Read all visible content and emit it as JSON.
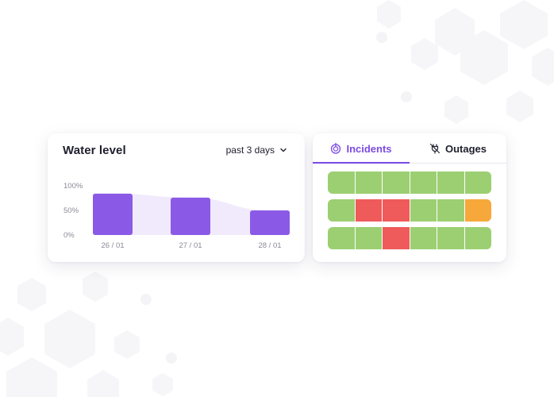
{
  "colors": {
    "accent": "#7b4ae2",
    "bar": "#8a5ae6",
    "area": "#f1eafc",
    "ok": "#9ccf72",
    "incident": "#ef5a5a",
    "warning": "#f7a83b",
    "hex_bg": "#f6f6f8"
  },
  "water_card": {
    "title": "Water level",
    "range_label": "past 3 days",
    "range_icon": "chevron-down-icon"
  },
  "chart_data": {
    "type": "bar",
    "categories": [
      "26 / 01",
      "27 / 01",
      "28 / 01"
    ],
    "values": [
      84,
      76,
      50
    ],
    "yticks": [
      "100%",
      "50%",
      "0%"
    ],
    "ylim": [
      0,
      100
    ],
    "grid": false,
    "legend": "none"
  },
  "incident_card": {
    "tabs": [
      {
        "label": "Incidents",
        "icon": "target-icon",
        "active": true
      },
      {
        "label": "Outages",
        "icon": "unplugged-icon",
        "active": false
      }
    ],
    "rows": [
      [
        "ok",
        "ok",
        "ok",
        "ok",
        "ok",
        "ok"
      ],
      [
        "ok",
        "incident",
        "incident",
        "ok",
        "ok",
        "warning"
      ],
      [
        "ok",
        "ok",
        "incident",
        "ok",
        "ok",
        "ok"
      ]
    ]
  }
}
